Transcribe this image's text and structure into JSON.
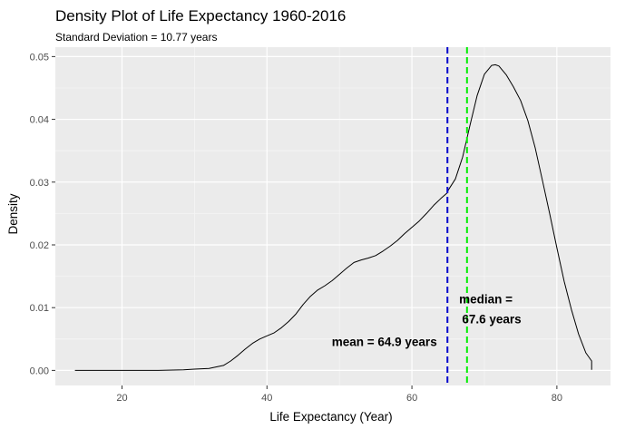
{
  "chart_data": {
    "type": "area",
    "title": "Density Plot of Life Expectancy 1960-2016",
    "subtitle": "Standard Deviation =  10.77 years",
    "xlabel": "Life Expectancy (Year)",
    "ylabel": "Density",
    "xlim": [
      10.8,
      87.4
    ],
    "ylim": [
      -0.0024,
      0.0515
    ],
    "x_ticks": [
      20,
      40,
      60,
      80
    ],
    "y_ticks": [
      0.0,
      0.01,
      0.02,
      0.03,
      0.04,
      0.05
    ],
    "y_tick_labels": [
      "0.00",
      "0.01",
      "0.02",
      "0.03",
      "0.04",
      "0.05"
    ],
    "grid": true,
    "series": [
      {
        "x": [
          13.5,
          20,
          25,
          28.5,
          30,
          32,
          34,
          35,
          36,
          37,
          38,
          39,
          40,
          41,
          42,
          43,
          44,
          45,
          46,
          47,
          48,
          49,
          50,
          51,
          52,
          53,
          54,
          55,
          56,
          57,
          58,
          59,
          60,
          61,
          62,
          63,
          64,
          64.9,
          65,
          66,
          67,
          67.6,
          68,
          69,
          70,
          71,
          71.5,
          72,
          73,
          74,
          75,
          76,
          77,
          78,
          79,
          80,
          81,
          82,
          83,
          84,
          84.8,
          84.8
        ],
        "y": [
          0.0,
          0.0,
          0.0,
          0.0001,
          0.0002,
          0.0003,
          0.0008,
          0.0015,
          0.0024,
          0.0034,
          0.0043,
          0.005,
          0.0055,
          0.006,
          0.0068,
          0.0078,
          0.009,
          0.0105,
          0.0118,
          0.0128,
          0.0135,
          0.0143,
          0.0153,
          0.0163,
          0.0172,
          0.0176,
          0.0179,
          0.0183,
          0.019,
          0.0198,
          0.0207,
          0.0218,
          0.0228,
          0.0238,
          0.025,
          0.0263,
          0.0274,
          0.0283,
          0.0287,
          0.0305,
          0.034,
          0.037,
          0.039,
          0.0438,
          0.0472,
          0.0486,
          0.0487,
          0.0485,
          0.0471,
          0.0452,
          0.043,
          0.0398,
          0.0355,
          0.0303,
          0.025,
          0.0195,
          0.0142,
          0.0097,
          0.0058,
          0.0028,
          0.0015,
          0.0001
        ]
      }
    ],
    "reference_lines": [
      {
        "name": "mean",
        "x": 64.9,
        "color": "#0000cc"
      },
      {
        "name": "median",
        "x": 67.6,
        "color": "#00ee00"
      }
    ],
    "annotations": [
      {
        "text": "mean = 64.9 years",
        "x": 56.2,
        "y": 0.0046
      },
      {
        "text": "median =",
        "x": 70.2,
        "y": 0.0114
      },
      {
        "text": "67.6 years",
        "x": 71.0,
        "y": 0.0082
      }
    ],
    "style": {
      "panel_background": "#ebebeb",
      "grid_major": "#ffffff",
      "grid_minor": "#f5f5f5",
      "line_color": "#000000",
      "tick_color": "#333333"
    }
  }
}
